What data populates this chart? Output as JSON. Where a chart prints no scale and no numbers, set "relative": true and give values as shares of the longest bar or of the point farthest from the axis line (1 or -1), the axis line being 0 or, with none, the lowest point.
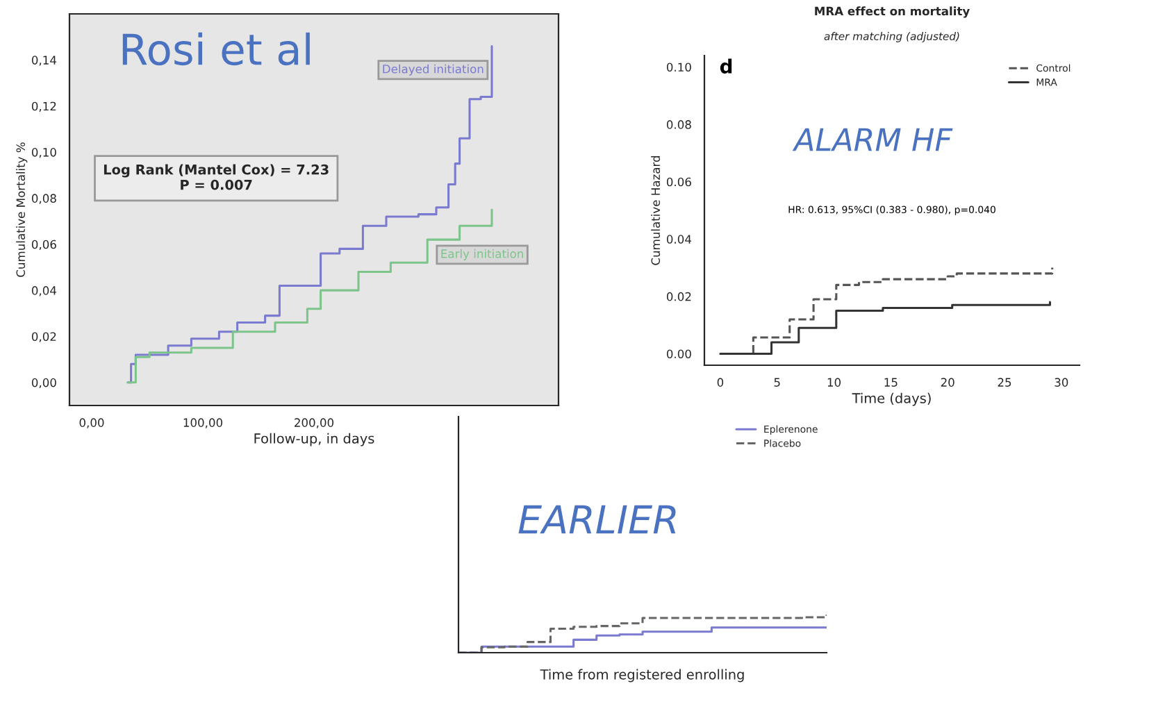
{
  "chart_data": [
    {
      "type": "step",
      "title": "Rosi et al",
      "xlabel": "Follow-up, in days",
      "ylabel": "Cumulative Mortality %",
      "xlim": [
        -20,
        420
      ],
      "ylim": [
        -0.01,
        0.16
      ],
      "xticks": [
        {
          "value": 0,
          "label": "0,00"
        },
        {
          "value": 100,
          "label": "100,00"
        },
        {
          "value": 200,
          "label": "200,00"
        }
      ],
      "yticks": [
        {
          "value": 0,
          "label": "0,00"
        },
        {
          "value": 0.02,
          "label": "0,02"
        },
        {
          "value": 0.04,
          "label": "0,04"
        },
        {
          "value": 0.06,
          "label": "0,06"
        },
        {
          "value": 0.08,
          "label": "0,08"
        },
        {
          "value": 0.1,
          "label": "0,10"
        },
        {
          "value": 0.12,
          "label": "0,12"
        },
        {
          "value": 0.14,
          "label": "0,14"
        }
      ],
      "annotations": [
        "Log Rank (Mantel Cox) = 7.23\nP = 0.007"
      ],
      "legend": false,
      "grid": false,
      "series": [
        {
          "name": "Delayed initiation",
          "color": "#7a7ad0",
          "line_style": "solid",
          "x": [
            32.5,
            35.4,
            39.6,
            68.8,
            89.6,
            114.6,
            131,
            156,
            169,
            181,
            206,
            223,
            244,
            265,
            294,
            310,
            321,
            327,
            331,
            340,
            350,
            360
          ],
          "values": [
            0,
            0.008,
            0.012,
            0.016,
            0.019,
            0.022,
            0.026,
            0.029,
            0.042,
            0.042,
            0.056,
            0.058,
            0.068,
            0.072,
            0.073,
            0.076,
            0.086,
            0.095,
            0.106,
            0.123,
            0.124,
            0.146
          ]
        },
        {
          "name": "Early initiation",
          "color": "#7cc48a",
          "line_style": "solid",
          "x": [
            32.5,
            39.6,
            52,
            89.6,
            127,
            165,
            194,
            206,
            240,
            269,
            302,
            331,
            360
          ],
          "values": [
            0,
            0.011,
            0.013,
            0.015,
            0.022,
            0.026,
            0.032,
            0.04,
            0.048,
            0.052,
            0.062,
            0.068,
            0.075
          ]
        }
      ]
    },
    {
      "type": "step",
      "title": "MRA effect on mortality",
      "subtitle": "after matching (adjusted)",
      "xlabel": "Time (days)",
      "ylabel": "Cumulative Hazard",
      "xlim": [
        -1.4,
        31.6
      ],
      "ylim": [
        -0.004,
        0.104
      ],
      "xticks": [
        0,
        5,
        10,
        15,
        20,
        25,
        30
      ],
      "yticks": [
        {
          "value": 0,
          "label": "0.00"
        },
        {
          "value": 0.02,
          "label": "0.02"
        },
        {
          "value": 0.04,
          "label": "0.04"
        },
        {
          "value": 0.06,
          "label": "0.06"
        },
        {
          "value": 0.08,
          "label": "0.08"
        },
        {
          "value": 0.1,
          "label": "0.10"
        }
      ],
      "annotations": [
        "d",
        "ALARM HF",
        "HR: 0.613, 95%CI (0.383 - 0.980), p=0.040"
      ],
      "legend": "top right",
      "grid": false,
      "series": [
        {
          "name": "Control",
          "color": "#555555",
          "line_style": "dashed",
          "x": [
            0,
            2.9,
            6.1,
            8.2,
            10.2,
            12.2,
            14.3,
            20,
            20.8,
            29,
            29.2
          ],
          "values": [
            0,
            0.0057,
            0.012,
            0.019,
            0.024,
            0.025,
            0.026,
            0.027,
            0.028,
            0.028,
            0.03
          ]
        },
        {
          "name": "MRA",
          "color": "#333333",
          "line_style": "solid",
          "x": [
            0,
            4.5,
            6.9,
            10.2,
            14.3,
            20,
            20.4,
            29
          ],
          "values": [
            0,
            0.004,
            0.009,
            0.015,
            0.016,
            0.016,
            0.017,
            0.018
          ]
        }
      ]
    },
    {
      "type": "step",
      "relative": true,
      "xlabel": "Time from registered enrolling",
      "annotations": [
        "EARLIER"
      ],
      "legend": "top right",
      "grid": false,
      "categories": [
        null,
        null,
        null,
        null,
        null,
        null,
        null,
        null,
        null,
        null,
        null,
        null,
        null,
        null,
        null,
        null,
        null
      ],
      "series": [
        {
          "name": "Eplerenone",
          "color": "#7a7ad0",
          "line_style": "solid",
          "values": [
            0,
            0.16,
            0.16,
            0.16,
            0.16,
            0.34,
            0.45,
            0.48,
            0.55,
            0.55,
            0.55,
            0.66,
            0.66,
            0.66,
            0.66,
            0.66,
            0.66
          ]
        },
        {
          "name": "Placebo",
          "color": "#666666",
          "line_style": "dashed",
          "values": [
            0,
            0.14,
            0.16,
            0.28,
            0.63,
            0.68,
            0.7,
            0.77,
            0.91,
            0.91,
            0.91,
            0.91,
            0.91,
            0.91,
            0.91,
            0.93,
            1
          ]
        }
      ]
    }
  ]
}
